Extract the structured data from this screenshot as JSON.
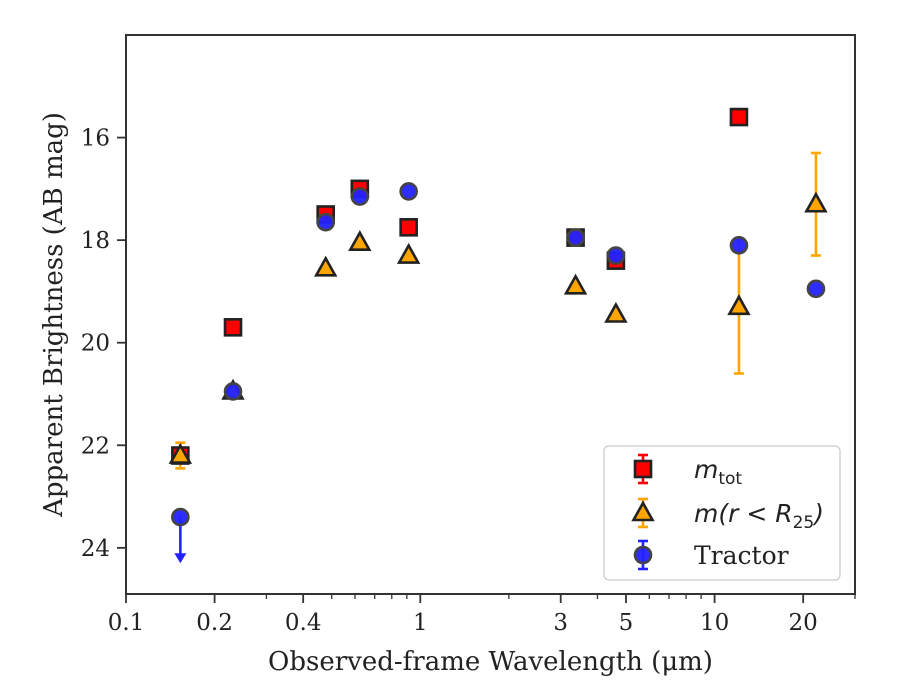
{
  "chart_data": {
    "type": "scatter",
    "xlabel": "Observed-frame Wavelength (μm)",
    "ylabel": "Apparent Brightness (AB mag)",
    "xscale": "log",
    "xlim": [
      0.1,
      30
    ],
    "ylim": [
      24.9,
      14.0
    ],
    "y_inverted": true,
    "xticks": [
      {
        "value": 0.1,
        "label": "0.1"
      },
      {
        "value": 0.2,
        "label": "0.2"
      },
      {
        "value": 0.4,
        "label": "0.4"
      },
      {
        "value": 1,
        "label": "1"
      },
      {
        "value": 3,
        "label": "3"
      },
      {
        "value": 5,
        "label": "5"
      },
      {
        "value": 10,
        "label": "10"
      },
      {
        "value": 20,
        "label": "20"
      }
    ],
    "yticks": [
      {
        "value": 16,
        "label": "16"
      },
      {
        "value": 18,
        "label": "18"
      },
      {
        "value": 20,
        "label": "20"
      },
      {
        "value": 22,
        "label": "22"
      },
      {
        "value": 24,
        "label": "24"
      }
    ],
    "grid": false,
    "legend_position": "bottom-right",
    "series": [
      {
        "legend": {
          "base": "m",
          "sub": "tot",
          "suffix": ""
        },
        "marker": "square",
        "color": "#ff0000",
        "edge_color": "#222222",
        "errorbar_color": "#ff0000",
        "points": [
          {
            "x": 0.153,
            "y": 22.2,
            "yerr": 0.05
          },
          {
            "x": 0.231,
            "y": 19.7,
            "yerr": 0.04
          },
          {
            "x": 0.477,
            "y": 17.5,
            "yerr": 0.03
          },
          {
            "x": 0.623,
            "y": 17.0,
            "yerr": 0.03
          },
          {
            "x": 0.913,
            "y": 17.75,
            "yerr": 0.03
          },
          {
            "x": 3.37,
            "y": 17.95,
            "yerr": 0.03
          },
          {
            "x": 4.62,
            "y": 18.4,
            "yerr": 0.03
          },
          {
            "x": 12.1,
            "y": 15.6,
            "yerr": 0.05
          }
        ]
      },
      {
        "legend": {
          "base": "m(r < R",
          "sub": "25",
          "suffix": ")"
        },
        "marker": "triangle",
        "color": "#ffa500",
        "edge_color": "#222222",
        "errorbar_color": "#ffa500",
        "points": [
          {
            "x": 0.153,
            "y": 22.2,
            "yerr": 0.25
          },
          {
            "x": 0.231,
            "y": 20.95,
            "yerr": 0.05
          },
          {
            "x": 0.477,
            "y": 18.55,
            "yerr": 0.03
          },
          {
            "x": 0.623,
            "y": 18.05,
            "yerr": 0.03
          },
          {
            "x": 0.913,
            "y": 18.3,
            "yerr": 0.03
          },
          {
            "x": 3.37,
            "y": 18.9,
            "yerr": 0.03
          },
          {
            "x": 4.62,
            "y": 19.45,
            "yerr": 0.05
          },
          {
            "x": 12.1,
            "y": 19.3,
            "yerr": 1.3
          },
          {
            "x": 22.1,
            "y": 17.3,
            "yerr": 1.0
          }
        ]
      },
      {
        "legend": {
          "base": "Tractor",
          "sub": "",
          "suffix": ""
        },
        "marker": "circle",
        "color": "#2222ff",
        "edge_color": "#444444",
        "errorbar_color": "#2222ff",
        "points": [
          {
            "x": 0.153,
            "y": 23.4,
            "upper_limit": true,
            "arrow_to": 24.3
          },
          {
            "x": 0.231,
            "y": 20.95,
            "yerr": 0.05
          },
          {
            "x": 0.477,
            "y": 17.65,
            "yerr": 0.03
          },
          {
            "x": 0.623,
            "y": 17.15,
            "yerr": 0.03
          },
          {
            "x": 0.913,
            "y": 17.05,
            "yerr": 0.03
          },
          {
            "x": 3.37,
            "y": 17.95,
            "yerr": 0.03
          },
          {
            "x": 4.62,
            "y": 18.3,
            "yerr": 0.03
          },
          {
            "x": 12.1,
            "y": 18.1,
            "yerr": 0.05
          },
          {
            "x": 22.1,
            "y": 18.95,
            "yerr": 0.05
          }
        ]
      }
    ]
  }
}
